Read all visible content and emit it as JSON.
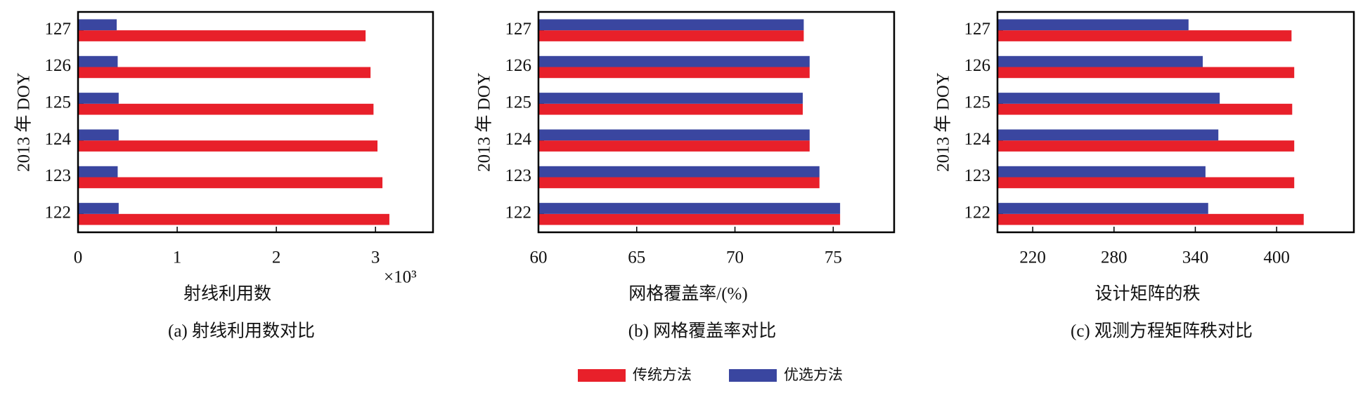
{
  "chart_data": [
    {
      "type": "bar",
      "orientation": "horizontal",
      "ylabel": "2013 年 DOY",
      "xlabel": "射线利用数",
      "x_multiplier": "×10³",
      "caption": "(a) 射线利用数对比",
      "categories": [
        "122",
        "123",
        "124",
        "125",
        "126",
        "127"
      ],
      "xlim": [
        0,
        3.58
      ],
      "xticks": [
        0,
        1,
        2,
        3
      ],
      "series": [
        {
          "color": "#e8202a",
          "values": [
            3.14,
            3.07,
            3.02,
            2.98,
            2.95,
            2.9
          ]
        },
        {
          "color": "#3a46a0",
          "values": [
            0.41,
            0.4,
            0.41,
            0.41,
            0.4,
            0.39
          ]
        }
      ]
    },
    {
      "type": "bar",
      "orientation": "horizontal",
      "ylabel": "2013 年 DOY",
      "xlabel": "网格覆盖率/(%)",
      "caption": "(b) 网格覆盖率对比",
      "categories": [
        "122",
        "123",
        "124",
        "125",
        "126",
        "127"
      ],
      "xlim": [
        60,
        78.1
      ],
      "xticks": [
        60,
        65,
        70,
        75
      ],
      "series": [
        {
          "color": "#e8202a",
          "values": [
            75.35,
            74.3,
            73.8,
            73.45,
            73.8,
            73.5
          ]
        },
        {
          "color": "#3a46a0",
          "values": [
            75.35,
            74.3,
            73.8,
            73.45,
            73.8,
            73.5
          ]
        }
      ]
    },
    {
      "type": "bar",
      "orientation": "horizontal",
      "ylabel": "2013 年 DOY",
      "xlabel": "设计矩阵的秩",
      "caption": "(c) 观测方程矩阵秩对比",
      "categories": [
        "122",
        "123",
        "124",
        "125",
        "126",
        "127"
      ],
      "xlim": [
        194,
        457
      ],
      "xticks": [
        220,
        280,
        340,
        400
      ],
      "series": [
        {
          "color": "#e8202a",
          "values": [
            420,
            413,
            413,
            411.5,
            413,
            411
          ]
        },
        {
          "color": "#3a46a0",
          "values": [
            349.5,
            347.5,
            357,
            358,
            345.5,
            335
          ]
        }
      ]
    }
  ],
  "legend": [
    {
      "name": "传统方法",
      "color": "#e8202a"
    },
    {
      "name": "优选方法",
      "color": "#3a46a0"
    }
  ]
}
